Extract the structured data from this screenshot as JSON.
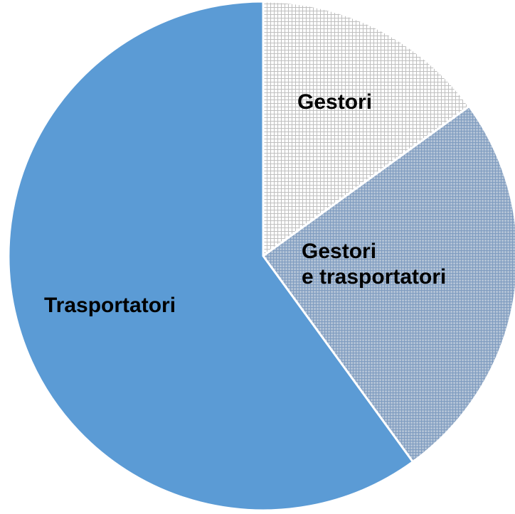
{
  "chart_data": {
    "type": "pie",
    "categories": [
      "Gestori",
      "Gestori\ne trasportatori",
      "Trasportatori"
    ],
    "values": [
      15,
      25,
      60
    ],
    "colors": [
      "#bfbfbf",
      "#7f9cc0",
      "#5b9bd5"
    ],
    "patterns": [
      "light-grid",
      "dense-grid",
      "solid"
    ]
  }
}
